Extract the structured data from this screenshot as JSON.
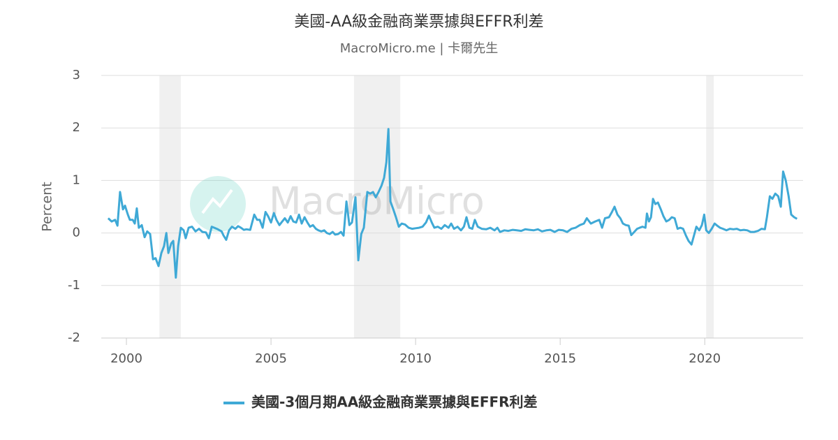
{
  "chart_data": {
    "type": "line",
    "title": "美國-AA級金融商業票據與EFFR利差",
    "subtitle": "MacroMicro.me | 卡爾先生",
    "watermark": "MacroMicro",
    "y_label": "Percent",
    "xlim": [
      1999.13,
      2023.4
    ],
    "xticks": [
      2000,
      2005,
      2010,
      2015,
      2020
    ],
    "ylim": [
      -2,
      3
    ],
    "yticks": [
      -2,
      -1,
      0,
      1,
      2,
      3
    ],
    "grid": true,
    "shaded_ranges": [
      [
        2001.14,
        2001.88
      ],
      [
        2007.87,
        2009.47
      ],
      [
        2020.05,
        2020.31
      ]
    ],
    "legend": "bottom",
    "x": [
      1999.37,
      1999.49,
      1999.61,
      1999.69,
      1999.78,
      1999.88,
      1999.95,
      2000.05,
      2000.12,
      2000.22,
      2000.29,
      2000.36,
      2000.43,
      2000.53,
      2000.63,
      2000.72,
      2000.82,
      2000.92,
      2001.01,
      2001.11,
      2001.21,
      2001.3,
      2001.38,
      2001.45,
      2001.55,
      2001.62,
      2001.71,
      2001.79,
      2001.88,
      2001.98,
      2002.05,
      2002.15,
      2002.27,
      2002.39,
      2002.51,
      2002.63,
      2002.75,
      2002.85,
      2002.95,
      2003.04,
      2003.16,
      2003.29,
      2003.36,
      2003.45,
      2003.55,
      2003.65,
      2003.77,
      2003.86,
      2003.96,
      2004.06,
      2004.15,
      2004.28,
      2004.42,
      2004.52,
      2004.61,
      2004.71,
      2004.81,
      2004.9,
      2005.0,
      2005.1,
      2005.19,
      2005.29,
      2005.39,
      2005.48,
      2005.58,
      2005.68,
      2005.77,
      2005.87,
      2005.97,
      2006.06,
      2006.16,
      2006.26,
      2006.35,
      2006.45,
      2006.55,
      2006.64,
      2006.74,
      2006.84,
      2006.93,
      2007.03,
      2007.13,
      2007.22,
      2007.32,
      2007.42,
      2007.51,
      2007.61,
      2007.71,
      2007.8,
      2007.92,
      2008.02,
      2008.12,
      2008.21,
      2008.33,
      2008.43,
      2008.53,
      2008.62,
      2008.72,
      2008.82,
      2008.91,
      2008.99,
      2009.06,
      2009.13,
      2009.23,
      2009.32,
      2009.42,
      2009.52,
      2009.64,
      2009.76,
      2009.88,
      2010.0,
      2010.12,
      2010.24,
      2010.36,
      2010.46,
      2010.56,
      2010.65,
      2010.77,
      2010.89,
      2011.01,
      2011.14,
      2011.23,
      2011.33,
      2011.45,
      2011.57,
      2011.67,
      2011.76,
      2011.86,
      2011.96,
      2012.05,
      2012.15,
      2012.29,
      2012.44,
      2012.58,
      2012.73,
      2012.83,
      2012.92,
      2013.07,
      2013.21,
      2013.36,
      2013.5,
      2013.65,
      2013.79,
      2013.94,
      2014.08,
      2014.23,
      2014.37,
      2014.52,
      2014.66,
      2014.81,
      2014.95,
      2015.1,
      2015.24,
      2015.39,
      2015.53,
      2015.68,
      2015.82,
      2015.92,
      2016.06,
      2016.21,
      2016.35,
      2016.45,
      2016.55,
      2016.69,
      2016.79,
      2016.88,
      2016.98,
      2017.08,
      2017.17,
      2017.27,
      2017.37,
      2017.46,
      2017.56,
      2017.66,
      2017.75,
      2017.85,
      2017.95,
      2018.0,
      2018.07,
      2018.14,
      2018.21,
      2018.29,
      2018.38,
      2018.48,
      2018.57,
      2018.67,
      2018.77,
      2018.86,
      2018.96,
      2019.06,
      2019.15,
      2019.25,
      2019.35,
      2019.44,
      2019.54,
      2019.61,
      2019.71,
      2019.81,
      2019.9,
      2019.98,
      2020.05,
      2020.14,
      2020.24,
      2020.34,
      2020.43,
      2020.53,
      2020.63,
      2020.75,
      2020.87,
      2020.99,
      2021.11,
      2021.23,
      2021.35,
      2021.47,
      2021.59,
      2021.71,
      2021.84,
      2021.96,
      2022.08,
      2022.15,
      2022.25,
      2022.34,
      2022.44,
      2022.54,
      2022.63,
      2022.71,
      2022.8,
      2022.9,
      2022.99,
      2023.09,
      2023.19
    ],
    "series": [
      {
        "name": "美國-3個月期AA級金融商業票據與EFFR利差",
        "color": "#3fa9d6",
        "values": [
          0.28,
          0.22,
          0.25,
          0.14,
          0.78,
          0.45,
          0.52,
          0.35,
          0.25,
          0.25,
          0.18,
          0.47,
          0.1,
          0.15,
          -0.08,
          0.03,
          -0.02,
          -0.5,
          -0.48,
          -0.63,
          -0.38,
          -0.25,
          0,
          -0.38,
          -0.2,
          -0.15,
          -0.85,
          -0.25,
          0.1,
          0.05,
          -0.1,
          0.1,
          0.12,
          0.03,
          0.08,
          0.02,
          0.01,
          -0.1,
          0.12,
          0.1,
          0.07,
          0.03,
          -0.05,
          -0.13,
          0.05,
          0.12,
          0.08,
          0.13,
          0.1,
          0.06,
          0.07,
          0.06,
          0.35,
          0.25,
          0.25,
          0.1,
          0.4,
          0.32,
          0.2,
          0.38,
          0.25,
          0.15,
          0.22,
          0.28,
          0.2,
          0.32,
          0.22,
          0.2,
          0.35,
          0.18,
          0.3,
          0.2,
          0.12,
          0.15,
          0.08,
          0.05,
          0.03,
          0.05,
          0,
          -0.02,
          0.02,
          -0.03,
          -0.02,
          0.02,
          -0.05,
          0.6,
          0.15,
          0.2,
          0.68,
          -0.52,
          -0.02,
          0.1,
          0.78,
          0.75,
          0.78,
          0.68,
          0.78,
          0.9,
          1.05,
          1.35,
          1.98,
          0.6,
          0.45,
          0.3,
          0.12,
          0.18,
          0.16,
          0.1,
          0.08,
          0.09,
          0.1,
          0.12,
          0.2,
          0.33,
          0.2,
          0.1,
          0.12,
          0.08,
          0.15,
          0.1,
          0.18,
          0.08,
          0.12,
          0.05,
          0.12,
          0.3,
          0.1,
          0.08,
          0.25,
          0.12,
          0.08,
          0.07,
          0.1,
          0.05,
          0.1,
          0.02,
          0.05,
          0.04,
          0.06,
          0.05,
          0.04,
          0.07,
          0.06,
          0.05,
          0.07,
          0.03,
          0.05,
          0.06,
          0.02,
          0.06,
          0.05,
          0.02,
          0.08,
          0.1,
          0.15,
          0.18,
          0.28,
          0.18,
          0.22,
          0.25,
          0.1,
          0.28,
          0.3,
          0.4,
          0.5,
          0.35,
          0.28,
          0.18,
          0.15,
          0.14,
          -0.04,
          0.02,
          0.08,
          0.1,
          0.12,
          0.1,
          0.37,
          0.22,
          0.3,
          0.65,
          0.55,
          0.58,
          0.45,
          0.32,
          0.22,
          0.25,
          0.3,
          0.28,
          0.08,
          0.1,
          0.08,
          -0.05,
          -0.15,
          -0.22,
          -0.08,
          0.12,
          0.05,
          0.15,
          0.35,
          0.05,
          0,
          0.08,
          0.18,
          0.14,
          0.1,
          0.08,
          0.05,
          0.08,
          0.07,
          0.08,
          0.05,
          0.06,
          0.05,
          0.02,
          0.02,
          0.04,
          0.08,
          0.07,
          0.3,
          0.7,
          0.65,
          0.75,
          0.7,
          0.5,
          1.17,
          1.0,
          0.7,
          0.35,
          0.3,
          0.27
        ]
      }
    ]
  }
}
